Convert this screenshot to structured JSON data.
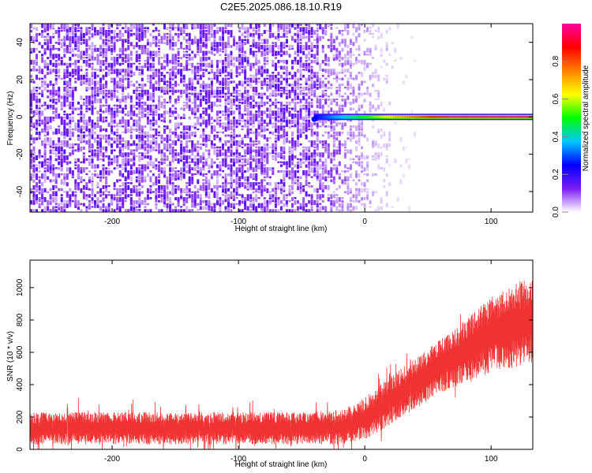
{
  "title": "C2E5.2025.086.18.10.R19",
  "colors": {
    "frame": "#000000",
    "snr_line": "#f03232",
    "background_dot": "#7a1cf0"
  },
  "chart_data": [
    {
      "type": "heatmap",
      "panel": "spectrogram",
      "xlabel": "Height of straight line (km)",
      "ylabel": "Frequency (Hz)",
      "xlim": [
        -265,
        133
      ],
      "ylim": [
        -51,
        50
      ],
      "x_ticks": [
        -200,
        -100,
        0,
        100
      ],
      "y_ticks": [
        -40,
        -20,
        0,
        20,
        40
      ],
      "grid": false,
      "noise_region_x": [
        -265,
        25
      ],
      "signal_line": {
        "frequency_hz": 0,
        "x_start": -40,
        "x_end": 133,
        "amplitude_start": 0.25,
        "amplitude_end": 0.98
      },
      "colorbar": {
        "label": "Normalized spectral amplitude",
        "range": [
          0.0,
          1.0
        ],
        "ticks": [
          0.0,
          0.2,
          0.4,
          0.6,
          0.8
        ],
        "colormap": [
          "#ffffff",
          "#7a1cf0",
          "#0000ff",
          "#00c8ff",
          "#00ff00",
          "#ffff00",
          "#ff8000",
          "#ff0000",
          "#ff00a0"
        ]
      }
    },
    {
      "type": "line",
      "panel": "snr",
      "xlabel": "Height of straight line (km)",
      "ylabel": "SNR (10 * v/v)",
      "xlim": [
        -265,
        133
      ],
      "ylim": [
        0,
        1170
      ],
      "x_ticks": [
        -200,
        -100,
        0,
        100
      ],
      "y_ticks": [
        0,
        200,
        400,
        600,
        800,
        1000
      ],
      "grid": false,
      "series": [
        {
          "x": [
            -265,
            -200,
            -150,
            -100,
            -50,
            -20,
            0,
            20,
            40,
            60,
            80,
            100,
            133
          ],
          "lower": [
            30,
            30,
            30,
            30,
            30,
            30,
            60,
            150,
            250,
            350,
            400,
            480,
            520
          ],
          "upper": [
            230,
            230,
            230,
            230,
            230,
            240,
            320,
            450,
            560,
            680,
            800,
            950,
            1080
          ]
        }
      ]
    }
  ]
}
